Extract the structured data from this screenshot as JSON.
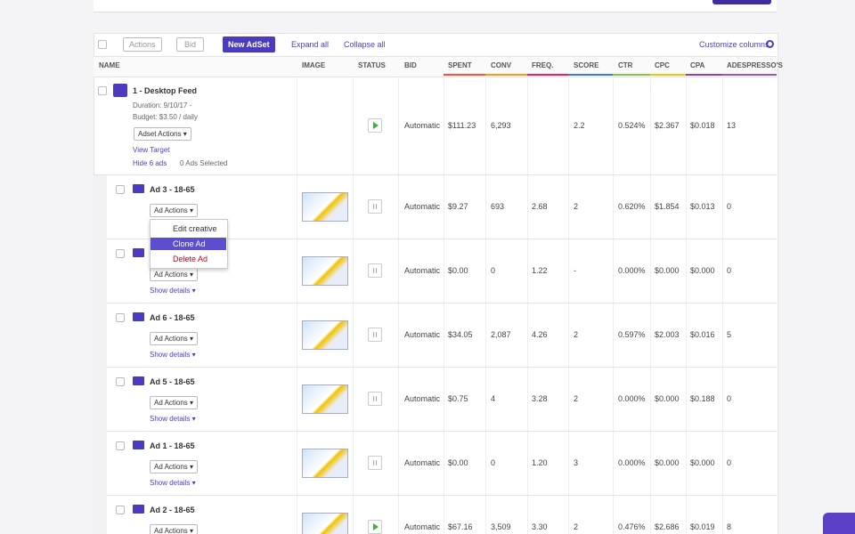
{
  "toolbar": {
    "actions": "Actions",
    "bid": "Bid",
    "new_adset": "New AdSet",
    "expand_all": "Expand all",
    "collapse_all": "Collapse all",
    "customize_columns": "Customize columns"
  },
  "columns": [
    "NAME",
    "IMAGE",
    "STATUS",
    "BID",
    "SPENT",
    "CONV",
    "FREQ.",
    "SCORE",
    "CTR",
    "CPC",
    "CPA",
    "ADESPRESSO'S"
  ],
  "adset": {
    "name": "1 - Desktop Feed",
    "duration": "Duration: 9/10/17 -",
    "budget": "Budget: $3.50 / daily",
    "actions_button": "Adset Actions",
    "view_target": "View Target",
    "hide_ads": "Hide 6 ads",
    "ads_selected": "0 Ads Selected",
    "status": "active",
    "values": [
      "Automatic",
      "$111.23",
      "6,293",
      null,
      "2.2",
      "0.524%",
      "$2.367",
      "$0.018",
      "13"
    ]
  },
  "ads": [
    {
      "name": "Ad 3 - 18-65",
      "actions_button": "Ad Actions",
      "status": "paused",
      "values": [
        "Automatic",
        "$9.27",
        "693",
        "2.68",
        "2",
        "0.620%",
        "$1.854",
        "$0.013",
        "0"
      ]
    },
    {
      "actions_button": "Ad Actions",
      "show_details": "Show details",
      "status": "paused",
      "values": [
        "Automatic",
        "$0.00",
        "0",
        "1.22",
        "-",
        "0.000%",
        "$0.000",
        "$0.000",
        "0"
      ]
    },
    {
      "name": "Ad 6 - 18-65",
      "actions_button": "Ad Actions",
      "show_details": "Show details",
      "status": "paused",
      "values": [
        "Automatic",
        "$34.05",
        "2,087",
        "4.26",
        "2",
        "0.597%",
        "$2.003",
        "$0.016",
        "5"
      ]
    },
    {
      "name": "Ad 5 - 18-65",
      "actions_button": "Ad Actions",
      "show_details": "Show details",
      "status": "paused",
      "values": [
        "Automatic",
        "$0.75",
        "4",
        "3.28",
        "2",
        "0.000%",
        "$0.000",
        "$0.188",
        "0"
      ]
    },
    {
      "name": "Ad 1 - 18-65",
      "actions_button": "Ad Actions",
      "show_details": "Show details",
      "status": "paused",
      "values": [
        "Automatic",
        "$0.00",
        "0",
        "1.20",
        "3",
        "0.000%",
        "$0.000",
        "$0.000",
        "0"
      ]
    },
    {
      "name": "Ad 2 - 18-65",
      "actions_button": "Ad Actions",
      "status": "active",
      "values": [
        "Automatic",
        "$67.16",
        "3,509",
        "3.30",
        "2",
        "0.476%",
        "$2.686",
        "$0.019",
        "8"
      ]
    }
  ],
  "dropdown": {
    "items": [
      "Edit creative",
      "Clone Ad",
      "Delete Ad"
    ]
  }
}
